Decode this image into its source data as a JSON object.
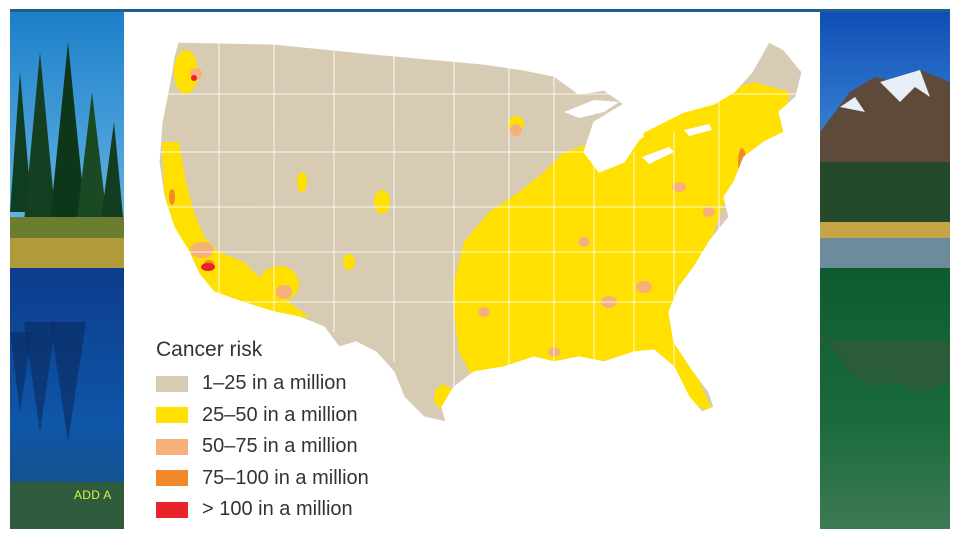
{
  "slide": {
    "footer_text": "ADD A"
  },
  "map": {
    "legend_title": "Cancer risk",
    "legend": [
      {
        "label": "1–25 in a million",
        "color": "#d8cbb3"
      },
      {
        "label": "25–50 in a million",
        "color": "#ffe000"
      },
      {
        "label": "50–75 in a million",
        "color": "#f7b07a"
      },
      {
        "label": "75–100 in a million",
        "color": "#f08a28"
      },
      {
        "label": "> 100 in a million",
        "color": "#e8232b"
      }
    ],
    "colors": {
      "land": "#d8cbb3",
      "border": "#ffffff",
      "lake": "#ffffff"
    }
  }
}
